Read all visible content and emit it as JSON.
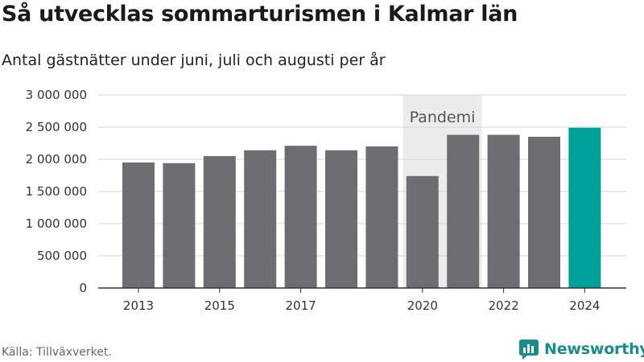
{
  "header": {
    "title": "Så utvecklas sommarturismen i Kalmar län",
    "subtitle": "Antal gästnätter under juni, juli och augusti per år"
  },
  "footer": {
    "source": "Källa: Tillväxverket.",
    "brand": "Newsworthy",
    "brand_icon": "newsworthy-logo-icon"
  },
  "colors": {
    "bar": "#6e6d72",
    "highlight": "#00a19a",
    "pandemic_band": "#ececec",
    "brand": "#1a8c8c"
  },
  "chart_data": {
    "type": "bar",
    "title": "Så utvecklas sommarturismen i Kalmar län",
    "subtitle": "Antal gästnätter under juni, juli och augusti per år",
    "categories": [
      "2013",
      "2014",
      "2015",
      "2016",
      "2017",
      "2018",
      "2019",
      "2020",
      "2021",
      "2022",
      "2023",
      "2024"
    ],
    "values": [
      1950000,
      1940000,
      2050000,
      2140000,
      2210000,
      2140000,
      2200000,
      1740000,
      2380000,
      2380000,
      2350000,
      2490000
    ],
    "x_tick_labels": [
      "2013",
      "2015",
      "2017",
      "2020",
      "2022",
      "2024"
    ],
    "y_ticks": [
      0,
      500000,
      1000000,
      1500000,
      2000000,
      2500000,
      3000000
    ],
    "y_tick_labels": [
      "0",
      "500 000",
      "1 000 000",
      "1 500 000",
      "2 000 000",
      "2 500 000",
      "3 000 000"
    ],
    "ylim": [
      0,
      3000000
    ],
    "highlight_category": "2024",
    "annotation": {
      "label": "Pandemi",
      "from": "2020",
      "to": "2021"
    },
    "grid": true,
    "legend": "none"
  }
}
